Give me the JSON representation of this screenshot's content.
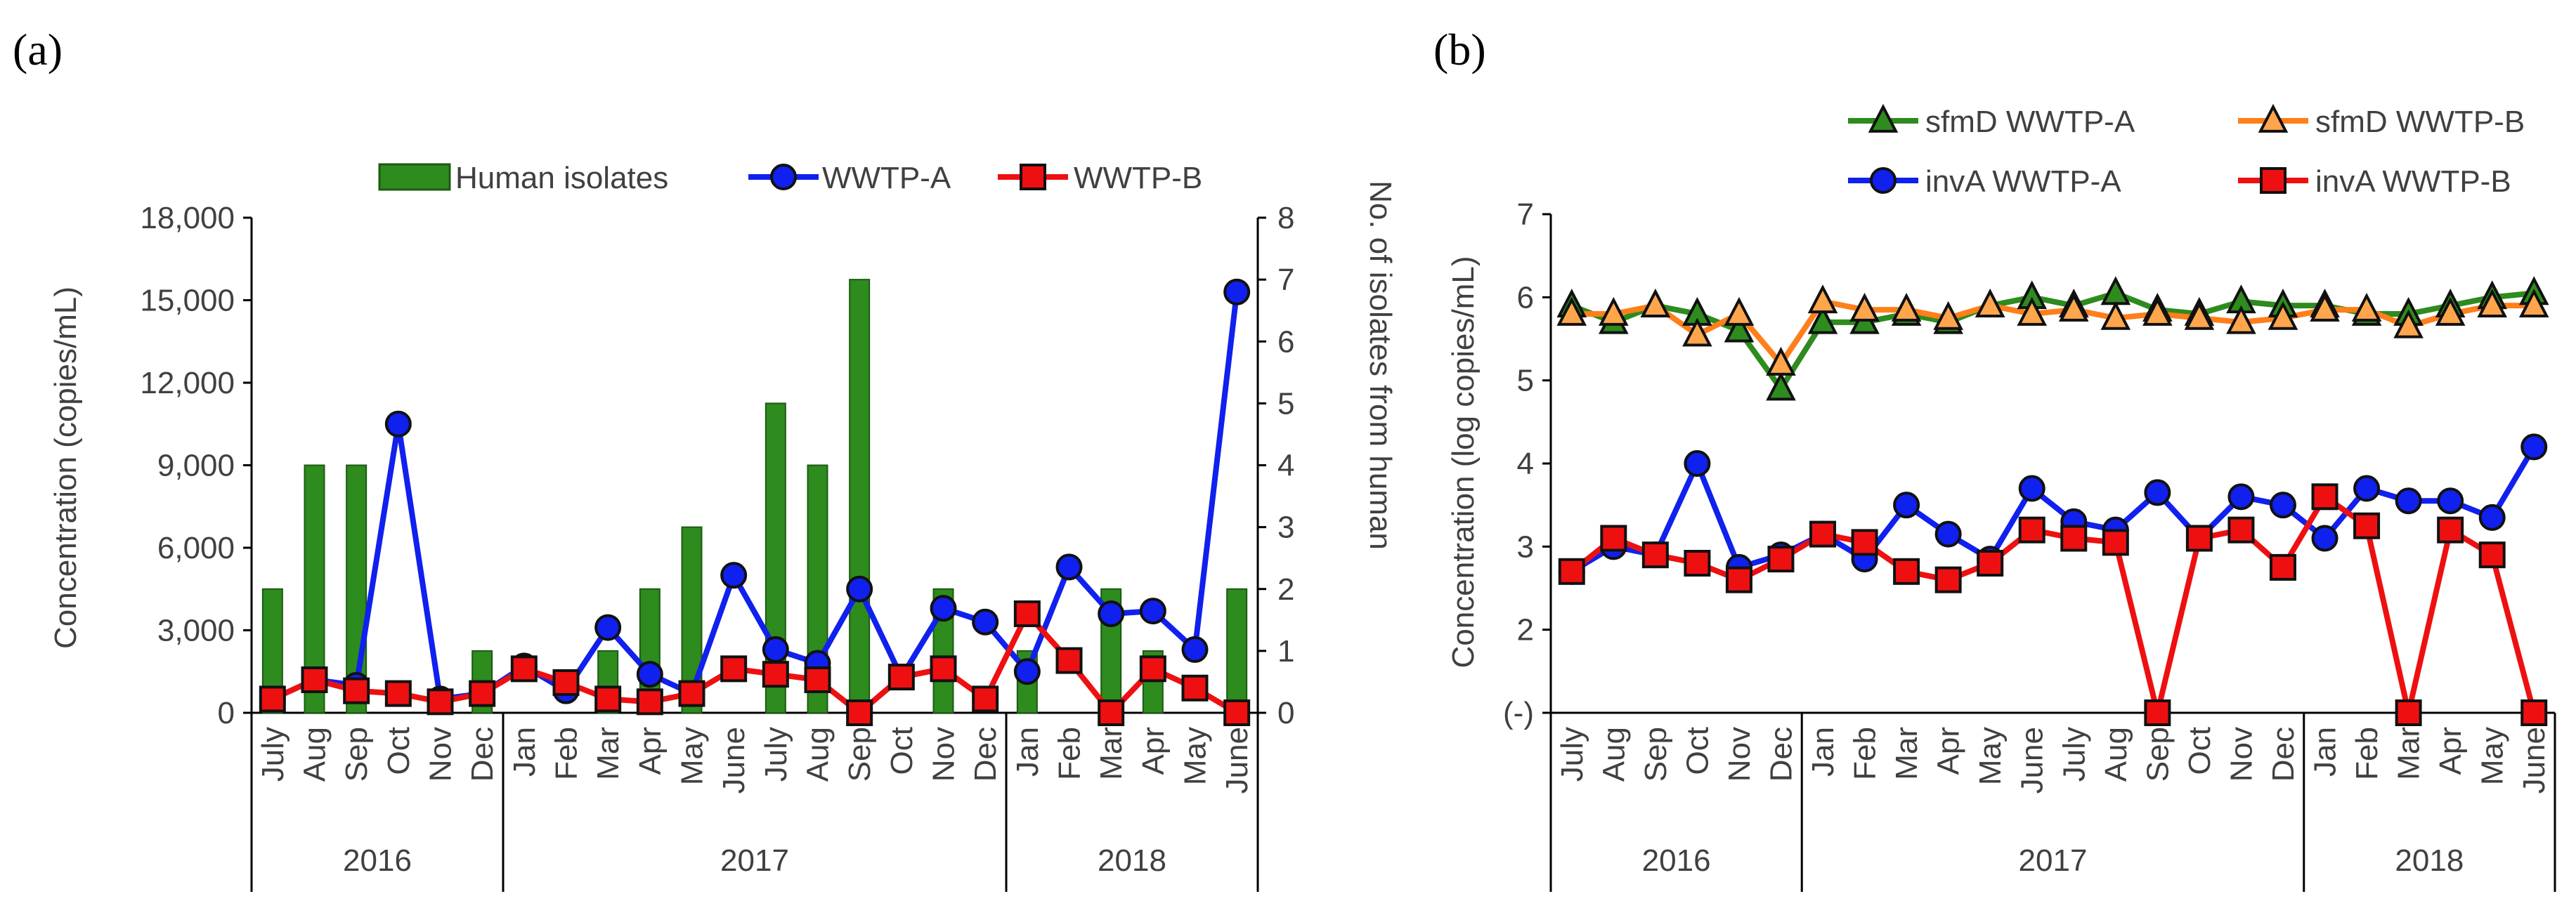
{
  "panels": {
    "a": {
      "label": "(a)"
    },
    "b": {
      "label": "(b)"
    }
  },
  "months": [
    "July",
    "Aug",
    "Sep",
    "Oct",
    "Nov",
    "Dec",
    "Jan",
    "Feb",
    "Mar",
    "Apr",
    "May",
    "June",
    "July",
    "Aug",
    "Sep",
    "Oct",
    "Nov",
    "Dec",
    "Jan",
    "Feb",
    "Mar",
    "Apr",
    "May",
    "June"
  ],
  "years": [
    {
      "label": "2016",
      "start": 0,
      "end": 5
    },
    {
      "label": "2017",
      "start": 6,
      "end": 17
    },
    {
      "label": "2018",
      "start": 18,
      "end": 23
    }
  ],
  "colors": {
    "green": "#2e8b1e",
    "green_dark": "#1c5a12",
    "blue": "#1020ee",
    "red": "#ee1010",
    "orange": "#ff7f1a",
    "orange_fill": "#ffa64d",
    "axis": "#000000"
  },
  "chart_data": [
    {
      "id": "a",
      "type": "bar+line",
      "ylabel": "Concentration  (copies/mL)",
      "y2label": "No. of isolates from human",
      "ylim": [
        0,
        18000
      ],
      "y2lim": [
        0,
        8
      ],
      "yticks": [
        "0",
        "3,000",
        "6,000",
        "9,000",
        "12,000",
        "15,000",
        "18,000"
      ],
      "y2ticks": [
        "0",
        "1",
        "2",
        "3",
        "4",
        "5",
        "6",
        "7",
        "8"
      ],
      "legend": [
        "Human isolates",
        "WWTP-A",
        "WWTP-B"
      ],
      "bars": {
        "name": "Human isolates",
        "values": [
          2,
          4,
          4,
          0,
          0,
          1,
          0,
          0,
          1,
          2,
          3,
          0,
          5,
          4,
          7,
          0,
          2,
          0,
          1,
          0,
          2,
          1,
          0,
          2
        ]
      },
      "series": [
        {
          "name": "WWTP-A",
          "values": [
            500,
            1200,
            1000,
            10500,
            500,
            700,
            1700,
            800,
            3100,
            1400,
            700,
            5000,
            2300,
            1800,
            4500,
            1300,
            3800,
            3300,
            1500,
            5300,
            3600,
            3700,
            2300,
            15300
          ]
        },
        {
          "name": "WWTP-B",
          "values": [
            500,
            1200,
            800,
            700,
            400,
            700,
            1600,
            1100,
            500,
            400,
            700,
            1600,
            1400,
            1200,
            0,
            1300,
            1600,
            500,
            3600,
            1900,
            0,
            1600,
            900,
            0
          ]
        }
      ]
    },
    {
      "id": "b",
      "type": "line",
      "ylabel": "Concentration  (log copies/mL)",
      "ylim": [
        1,
        7
      ],
      "yticks": [
        "(-)",
        "2",
        "3",
        "4",
        "5",
        "6",
        "7"
      ],
      "legend": [
        "sfmD WWTP-A",
        "sfmD WWTP-B",
        "invA WWTP-A",
        "invA WWTP-B"
      ],
      "series": [
        {
          "name": "sfmD WWTP-A",
          "values": [
            5.9,
            5.7,
            5.9,
            5.8,
            5.6,
            4.9,
            5.7,
            5.7,
            5.8,
            5.7,
            5.9,
            6.0,
            5.9,
            6.05,
            5.85,
            5.8,
            5.95,
            5.9,
            5.9,
            5.8,
            5.8,
            5.9,
            6.0,
            6.05
          ]
        },
        {
          "name": "sfmD WWTP-B",
          "values": [
            5.8,
            5.8,
            5.9,
            5.55,
            5.8,
            5.2,
            5.95,
            5.85,
            5.85,
            5.75,
            5.9,
            5.8,
            5.85,
            5.75,
            5.8,
            5.75,
            5.7,
            5.75,
            5.85,
            5.85,
            5.65,
            5.8,
            5.9,
            5.9
          ]
        },
        {
          "name": "invA WWTP-A",
          "values": [
            2.7,
            3.0,
            2.9,
            4.0,
            2.75,
            2.9,
            3.15,
            2.85,
            3.5,
            3.15,
            2.85,
            3.7,
            3.3,
            3.2,
            3.65,
            3.1,
            3.6,
            3.5,
            3.1,
            3.7,
            3.55,
            3.55,
            3.35,
            4.2
          ]
        },
        {
          "name": "invA WWTP-B",
          "values": [
            2.7,
            3.1,
            2.9,
            2.8,
            2.6,
            2.85,
            3.15,
            3.05,
            2.7,
            2.6,
            2.8,
            3.2,
            3.1,
            3.05,
            1.0,
            3.1,
            3.2,
            2.75,
            3.6,
            3.25,
            1.0,
            3.2,
            2.9,
            1.0
          ]
        }
      ]
    }
  ]
}
